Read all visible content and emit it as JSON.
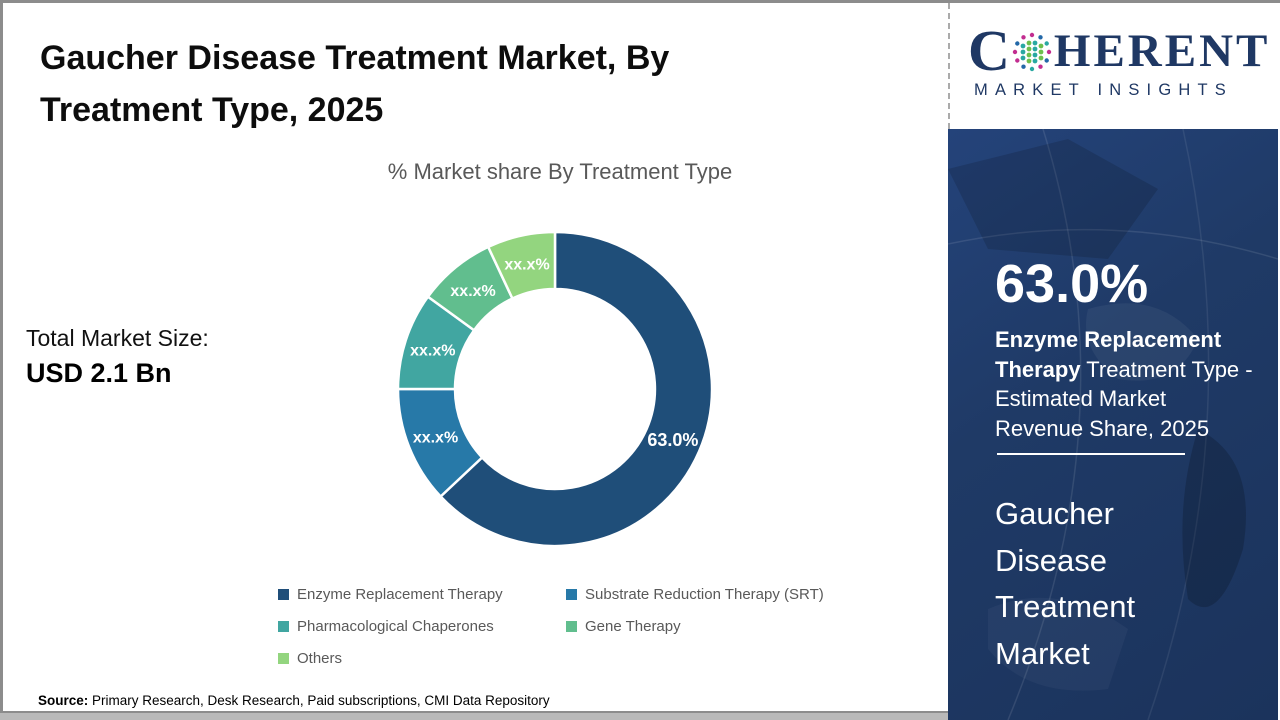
{
  "header": {
    "title_line1": "Gaucher Disease Treatment Market, By",
    "title_line2": "Treatment Type, 2025",
    "subtitle": "% Market share By Treatment Type"
  },
  "total_market": {
    "label": "Total Market Size:",
    "value": "USD 2.1 Bn"
  },
  "chart_data": {
    "type": "pie",
    "subtype": "donut",
    "title": "% Market share By Treatment Type",
    "categories": [
      "Enzyme Replacement Therapy",
      "Substrate Reduction Therapy (SRT)",
      "Pharmacological Chaperones",
      "Gene Therapy",
      "Others"
    ],
    "values": [
      63.0,
      12.0,
      10.0,
      8.0,
      7.0
    ],
    "labels": [
      "63.0%",
      "xx.x%",
      "xx.x%",
      "xx.x%",
      "xx.x%"
    ],
    "colors": [
      "#1F4E79",
      "#2779A8",
      "#41A6A1",
      "#61BE8E",
      "#93D57F"
    ],
    "start_angle_deg": 0,
    "direction": "clockwise",
    "hole_ratio": 0.64,
    "legend_position": "bottom"
  },
  "sidebar": {
    "stat_value": "63.0%",
    "stat_desc_bold": "Enzyme Replacement Therapy",
    "stat_desc_rest": " Treatment Type - Estimated Market Revenue Share, 2025",
    "market_name": "Gaucher Disease Treatment Market",
    "panel_color": "#1F3A66"
  },
  "logo": {
    "part1": "C",
    "part2": "HERENT",
    "tagline": "MARKET INSIGHTS",
    "brand_color": "#1F3864",
    "globe_colors": [
      "#C22D90",
      "#2368A8",
      "#29A8A2",
      "#6CBF4C"
    ]
  },
  "source": {
    "label": "Source:",
    "text": " Primary Research, Desk Research, Paid subscriptions, CMI Data Repository"
  }
}
